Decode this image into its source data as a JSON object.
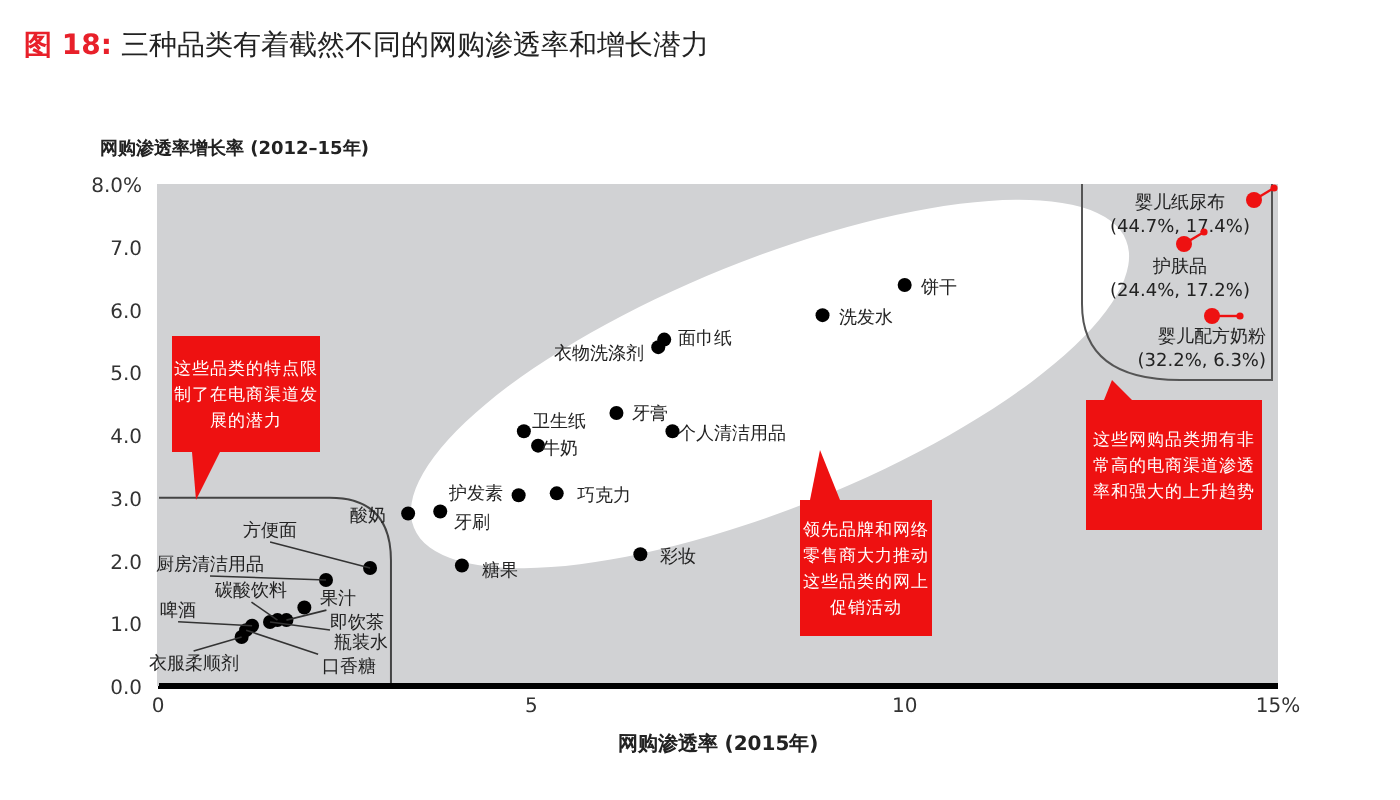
{
  "chart_data": {
    "type": "scatter",
    "title": "图 18: 三种品类有着截然不同的网购渗透率和增长潜力",
    "xlabel": "网购渗透率 (2015年)",
    "ylabel": "网购渗透率增长率 (2012–15年)",
    "xlim": [
      0,
      15
    ],
    "ylim": [
      0,
      8
    ],
    "xticks": [
      0,
      5,
      10,
      {
        "value": 15,
        "label": "15%"
      }
    ],
    "yticks": [
      {
        "value": 0,
        "label": "0.0"
      },
      {
        "value": 1,
        "label": "1.0"
      },
      {
        "value": 2,
        "label": "2.0"
      },
      {
        "value": 3,
        "label": "3.0"
      },
      {
        "value": 4,
        "label": "4.0"
      },
      {
        "value": 5,
        "label": "5.0"
      },
      {
        "value": 6,
        "label": "6.0"
      },
      {
        "value": 7,
        "label": "7.0"
      },
      {
        "value": 8,
        "label": "8.0%"
      }
    ],
    "grid": false,
    "marker": "circle",
    "series": [
      {
        "color": "#000000",
        "x": [
          10.0,
          8.9,
          6.78,
          6.7,
          6.14,
          6.89,
          4.9,
          5.09,
          4.83,
          5.34,
          3.35,
          3.78,
          4.07,
          6.46,
          2.84,
          2.25,
          1.96,
          1.6,
          1.72,
          1.26,
          1.5,
          1.12,
          1.18
        ],
        "values": [
          6.39,
          5.91,
          5.52,
          5.4,
          4.35,
          4.06,
          4.06,
          3.83,
          3.04,
          3.07,
          2.75,
          2.78,
          1.92,
          2.1,
          1.88,
          1.69,
          1.25,
          1.05,
          1.05,
          0.96,
          1.02,
          0.78,
          0.89
        ]
      }
    ],
    "annotations": [
      {
        "text": "饼干",
        "x": 10.0,
        "y": 6.39
      },
      {
        "text": "洗发水",
        "x": 8.9,
        "y": 5.91
      },
      {
        "text": "面巾纸",
        "x": 6.78,
        "y": 5.52
      },
      {
        "text": "衣物洗涤剂",
        "x": 6.7,
        "y": 5.4
      },
      {
        "text": "牙膏",
        "x": 6.14,
        "y": 4.35
      },
      {
        "text": "个人清洁用品",
        "x": 6.89,
        "y": 4.06
      },
      {
        "text": "卫生纸",
        "x": 4.9,
        "y": 4.06
      },
      {
        "text": "牛奶",
        "x": 5.09,
        "y": 3.83
      },
      {
        "text": "护发素",
        "x": 4.83,
        "y": 3.04
      },
      {
        "text": "巧克力",
        "x": 5.34,
        "y": 3.07
      },
      {
        "text": "酸奶",
        "x": 3.35,
        "y": 2.75
      },
      {
        "text": "牙刷",
        "x": 3.78,
        "y": 2.78
      },
      {
        "text": "糖果",
        "x": 4.07,
        "y": 1.92
      },
      {
        "text": "彩妆",
        "x": 6.46,
        "y": 2.1
      },
      {
        "text": "方便面",
        "x": 2.84,
        "y": 1.88
      },
      {
        "text": "厨房清洁用品",
        "x": 2.25,
        "y": 1.69
      },
      {
        "text": "果汁",
        "x": 1.96,
        "y": 1.25
      },
      {
        "text": "碳酸饮料",
        "x": 1.6,
        "y": 1.05
      },
      {
        "text": "即饮茶",
        "x": 1.72,
        "y": 1.05
      },
      {
        "text": "啤酒",
        "x": 1.26,
        "y": 0.96
      },
      {
        "text": "瓶装水",
        "x": 1.5,
        "y": 1.02
      },
      {
        "text": "衣服柔顺剂",
        "x": 1.12,
        "y": 0.78
      },
      {
        "text": "口香糖",
        "x": 1.18,
        "y": 0.89
      },
      "这些品类的特点限制了在电商渠道发展的潜力",
      "领先品牌和网络零售商大力推动这些品类的网上促销活动",
      "这些网购品类拥有非常高的电商渠道渗透率和强大的上升趋势",
      "婴儿纸尿布\n(44.7%, 17.4%)",
      "护肤品\n(24.4%, 17.2%)",
      "婴儿配方奶粉\n(32.2%, 6.3%)"
    ]
  }
}
